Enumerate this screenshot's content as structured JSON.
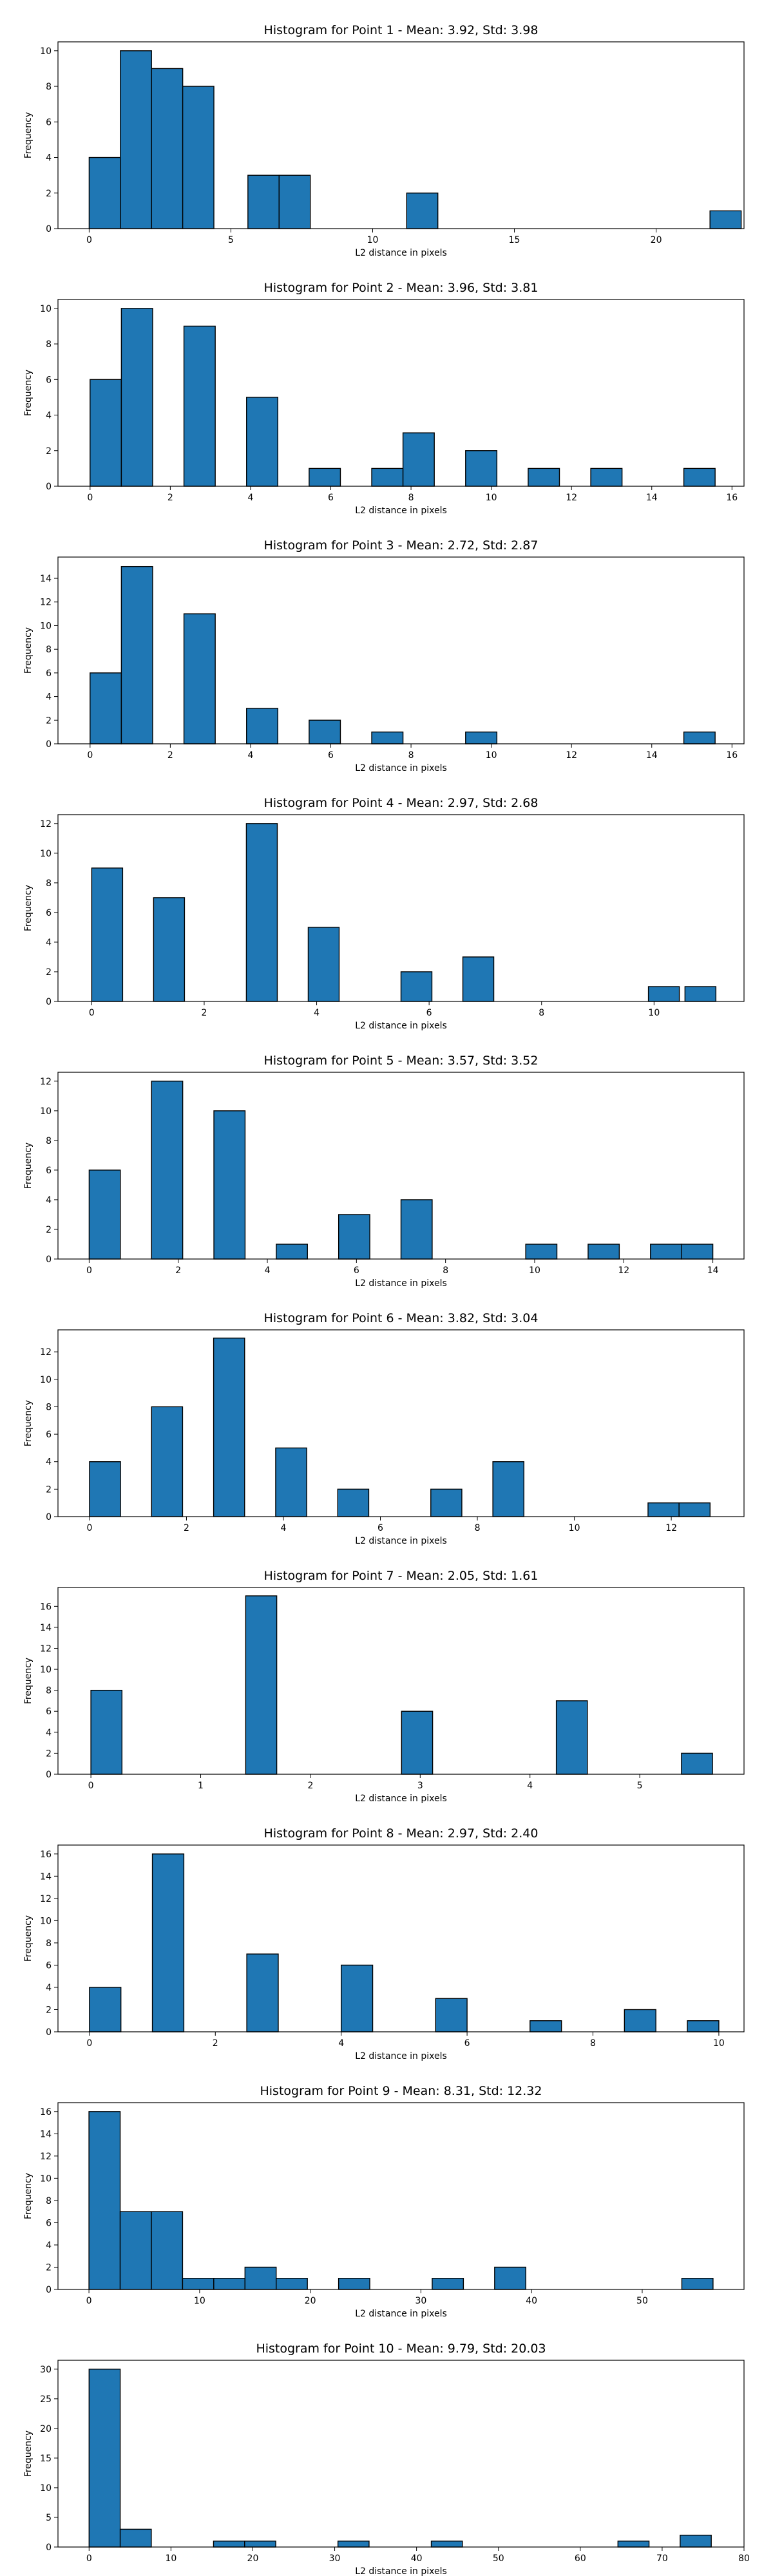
{
  "chart_data": [
    {
      "type": "bar",
      "title": "Histogram for Point 1 - Mean: 3.92, Std: 3.98",
      "xlabel": "L2 distance in pixels",
      "ylabel": "Frequency",
      "xlim": [
        -1.1,
        23.1
      ],
      "ylim": [
        0,
        10.5
      ],
      "xticks": [
        0,
        5,
        10,
        15,
        20
      ],
      "yticks": [
        0,
        2,
        4,
        6,
        8,
        10
      ],
      "bin_width": 1.1,
      "bins": [
        {
          "x": 0,
          "count": 4
        },
        {
          "x": 1.1,
          "count": 10
        },
        {
          "x": 2.2,
          "count": 9
        },
        {
          "x": 3.3,
          "count": 8
        },
        {
          "x": 5.6,
          "count": 3
        },
        {
          "x": 6.7,
          "count": 3
        },
        {
          "x": 11.2,
          "count": 2
        },
        {
          "x": 21.9,
          "count": 1
        }
      ]
    },
    {
      "type": "bar",
      "title": "Histogram for Point 2 - Mean: 3.96, Std: 3.81",
      "xlabel": "L2 distance in pixels",
      "ylabel": "Frequency",
      "xlim": [
        -0.8,
        16.3
      ],
      "ylim": [
        0,
        10.5
      ],
      "xticks": [
        0,
        2,
        4,
        6,
        8,
        10,
        12,
        14,
        16
      ],
      "yticks": [
        0,
        2,
        4,
        6,
        8,
        10
      ],
      "bin_width": 0.78,
      "bins": [
        {
          "x": 0,
          "count": 6
        },
        {
          "x": 0.78,
          "count": 10
        },
        {
          "x": 2.34,
          "count": 9
        },
        {
          "x": 3.9,
          "count": 5
        },
        {
          "x": 5.46,
          "count": 1
        },
        {
          "x": 7.02,
          "count": 1
        },
        {
          "x": 7.8,
          "count": 3
        },
        {
          "x": 9.36,
          "count": 2
        },
        {
          "x": 10.92,
          "count": 1
        },
        {
          "x": 12.48,
          "count": 1
        },
        {
          "x": 14.8,
          "count": 1
        }
      ]
    },
    {
      "type": "bar",
      "title": "Histogram for Point 3 - Mean: 2.72, Std: 2.87",
      "xlabel": "L2 distance in pixels",
      "ylabel": "Frequency",
      "xlim": [
        -0.8,
        16.3
      ],
      "ylim": [
        0,
        15.8
      ],
      "xticks": [
        0,
        2,
        4,
        6,
        8,
        10,
        12,
        14,
        16
      ],
      "yticks": [
        0,
        2,
        4,
        6,
        8,
        10,
        12,
        14
      ],
      "bin_width": 0.78,
      "bins": [
        {
          "x": 0,
          "count": 6
        },
        {
          "x": 0.78,
          "count": 15
        },
        {
          "x": 2.34,
          "count": 11
        },
        {
          "x": 3.9,
          "count": 3
        },
        {
          "x": 5.46,
          "count": 2
        },
        {
          "x": 7.02,
          "count": 1
        },
        {
          "x": 9.36,
          "count": 1
        },
        {
          "x": 14.8,
          "count": 1
        }
      ]
    },
    {
      "type": "bar",
      "title": "Histogram for Point 4 - Mean: 2.97, Std: 2.68",
      "xlabel": "L2 distance in pixels",
      "ylabel": "Frequency",
      "xlim": [
        -0.6,
        11.6
      ],
      "ylim": [
        0,
        12.6
      ],
      "xticks": [
        0,
        2,
        4,
        6,
        8,
        10
      ],
      "yticks": [
        0,
        2,
        4,
        6,
        8,
        10,
        12
      ],
      "bin_width": 0.55,
      "bins": [
        {
          "x": 0,
          "count": 9
        },
        {
          "x": 1.1,
          "count": 7
        },
        {
          "x": 2.75,
          "count": 12
        },
        {
          "x": 3.85,
          "count": 5
        },
        {
          "x": 5.5,
          "count": 2
        },
        {
          "x": 6.6,
          "count": 3
        },
        {
          "x": 9.9,
          "count": 1
        },
        {
          "x": 10.55,
          "count": 1
        }
      ]
    },
    {
      "type": "bar",
      "title": "Histogram for Point 5 - Mean: 3.57, Std: 3.52",
      "xlabel": "L2 distance in pixels",
      "ylabel": "Frequency",
      "xlim": [
        -0.7,
        14.7
      ],
      "ylim": [
        0,
        12.6
      ],
      "xticks": [
        0,
        2,
        4,
        6,
        8,
        10,
        12,
        14
      ],
      "yticks": [
        0,
        2,
        4,
        6,
        8,
        10,
        12
      ],
      "bin_width": 0.7,
      "bins": [
        {
          "x": 0,
          "count": 6
        },
        {
          "x": 1.4,
          "count": 12
        },
        {
          "x": 2.8,
          "count": 10
        },
        {
          "x": 4.2,
          "count": 1
        },
        {
          "x": 5.6,
          "count": 3
        },
        {
          "x": 7.0,
          "count": 4
        },
        {
          "x": 9.8,
          "count": 1
        },
        {
          "x": 11.2,
          "count": 1
        },
        {
          "x": 12.6,
          "count": 1
        },
        {
          "x": 13.3,
          "count": 1
        }
      ]
    },
    {
      "type": "bar",
      "title": "Histogram for Point 6 - Mean: 3.82, Std: 3.04",
      "xlabel": "L2 distance in pixels",
      "ylabel": "Frequency",
      "xlim": [
        -0.65,
        13.5
      ],
      "ylim": [
        0,
        13.6
      ],
      "xticks": [
        0,
        2,
        4,
        6,
        8,
        10,
        12
      ],
      "yticks": [
        0,
        2,
        4,
        6,
        8,
        10,
        12
      ],
      "bin_width": 0.64,
      "bins": [
        {
          "x": 0,
          "count": 4
        },
        {
          "x": 1.28,
          "count": 8
        },
        {
          "x": 2.56,
          "count": 13
        },
        {
          "x": 3.84,
          "count": 5
        },
        {
          "x": 5.12,
          "count": 2
        },
        {
          "x": 7.04,
          "count": 2
        },
        {
          "x": 8.32,
          "count": 4
        },
        {
          "x": 11.52,
          "count": 1
        },
        {
          "x": 12.16,
          "count": 1
        }
      ]
    },
    {
      "type": "bar",
      "title": "Histogram for Point 7 - Mean: 2.05, Std: 1.61",
      "xlabel": "L2 distance in pixels",
      "ylabel": "Frequency",
      "xlim": [
        -0.3,
        5.95
      ],
      "ylim": [
        0,
        17.8
      ],
      "xticks": [
        0,
        1,
        2,
        3,
        4,
        5
      ],
      "yticks": [
        0,
        2,
        4,
        6,
        8,
        10,
        12,
        14,
        16
      ],
      "bin_width": 0.283,
      "bins": [
        {
          "x": 0,
          "count": 8
        },
        {
          "x": 1.41,
          "count": 17
        },
        {
          "x": 2.83,
          "count": 6
        },
        {
          "x": 4.24,
          "count": 7
        },
        {
          "x": 5.38,
          "count": 2
        }
      ]
    },
    {
      "type": "bar",
      "title": "Histogram for Point 8 - Mean: 2.97, Std: 2.40",
      "xlabel": "L2 distance in pixels",
      "ylabel": "Frequency",
      "xlim": [
        -0.5,
        10.4
      ],
      "ylim": [
        0,
        16.8
      ],
      "xticks": [
        0,
        2,
        4,
        6,
        8,
        10
      ],
      "yticks": [
        0,
        2,
        4,
        6,
        8,
        10,
        12,
        14,
        16
      ],
      "bin_width": 0.5,
      "bins": [
        {
          "x": 0,
          "count": 4
        },
        {
          "x": 1.0,
          "count": 16
        },
        {
          "x": 2.5,
          "count": 7
        },
        {
          "x": 4.0,
          "count": 6
        },
        {
          "x": 5.5,
          "count": 3
        },
        {
          "x": 7.0,
          "count": 1
        },
        {
          "x": 8.5,
          "count": 2
        },
        {
          "x": 9.5,
          "count": 1
        }
      ]
    },
    {
      "type": "bar",
      "title": "Histogram for Point 9 - Mean: 8.31, Std: 12.32",
      "xlabel": "L2 distance in pixels",
      "ylabel": "Frequency",
      "xlim": [
        -2.8,
        59.2
      ],
      "ylim": [
        0,
        16.8
      ],
      "xticks": [
        0,
        10,
        20,
        30,
        40,
        50
      ],
      "yticks": [
        0,
        2,
        4,
        6,
        8,
        10,
        12,
        14,
        16
      ],
      "bin_width": 2.82,
      "bins": [
        {
          "x": 0,
          "count": 16
        },
        {
          "x": 2.82,
          "count": 7
        },
        {
          "x": 5.64,
          "count": 7
        },
        {
          "x": 8.46,
          "count": 1
        },
        {
          "x": 11.28,
          "count": 1
        },
        {
          "x": 14.1,
          "count": 2
        },
        {
          "x": 16.92,
          "count": 1
        },
        {
          "x": 22.56,
          "count": 1
        },
        {
          "x": 31.02,
          "count": 1
        },
        {
          "x": 36.66,
          "count": 2
        },
        {
          "x": 53.58,
          "count": 1
        }
      ]
    },
    {
      "type": "bar",
      "title": "Histogram for Point 10 - Mean: 9.79, Std: 20.03",
      "xlabel": "L2 distance in pixels",
      "ylabel": "Frequency",
      "xlim": [
        -3.8,
        80.0
      ],
      "ylim": [
        0,
        31.5
      ],
      "xticks": [
        0,
        10,
        20,
        30,
        40,
        50,
        60,
        70,
        80
      ],
      "yticks": [
        0,
        5,
        10,
        15,
        20,
        25,
        30
      ],
      "bin_width": 3.8,
      "bins": [
        {
          "x": 0,
          "count": 30
        },
        {
          "x": 3.8,
          "count": 3
        },
        {
          "x": 15.2,
          "count": 1
        },
        {
          "x": 19.0,
          "count": 1
        },
        {
          "x": 30.4,
          "count": 1
        },
        {
          "x": 41.8,
          "count": 1
        },
        {
          "x": 64.6,
          "count": 1
        },
        {
          "x": 72.2,
          "count": 2
        }
      ]
    }
  ]
}
